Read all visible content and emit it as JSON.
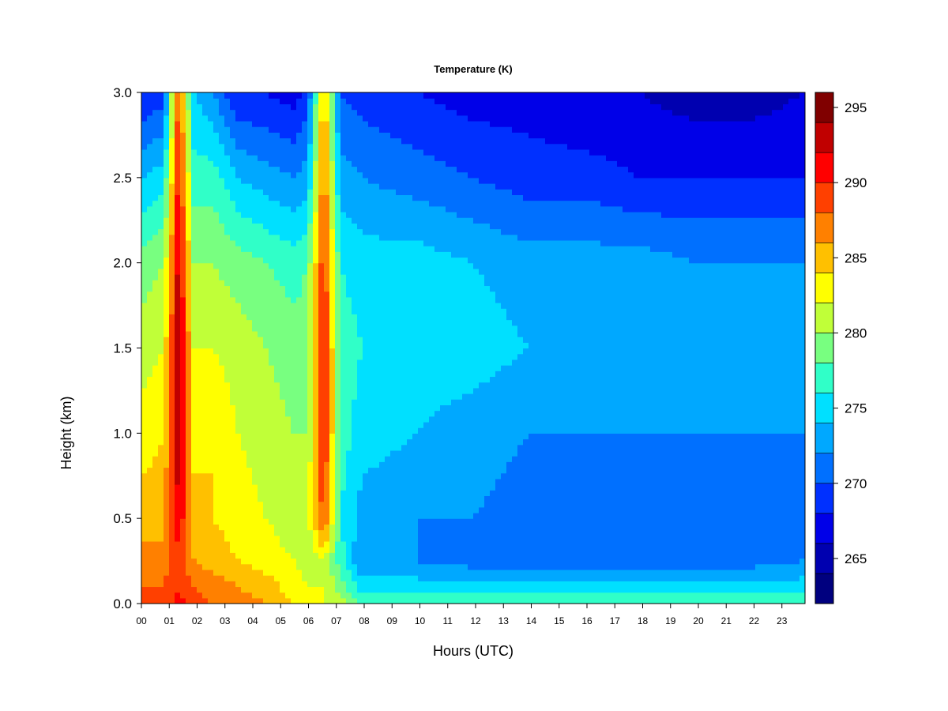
{
  "chart_data": {
    "type": "heatmap",
    "title": "Temperature (K)",
    "xlabel": "Hours (UTC)",
    "ylabel": "Height (km)",
    "xlim": [
      0,
      24
    ],
    "ylim": [
      0.0,
      3.0
    ],
    "x_ticks": [
      "00",
      "01",
      "02",
      "03",
      "04",
      "05",
      "06",
      "07",
      "08",
      "09",
      "10",
      "11",
      "12",
      "13",
      "14",
      "15",
      "16",
      "17",
      "18",
      "19",
      "20",
      "21",
      "22",
      "23"
    ],
    "y_ticks": [
      "0.0",
      "0.5",
      "1.0",
      "1.5",
      "2.0",
      "2.5",
      "3.0"
    ],
    "colorbar": {
      "min": 262,
      "max": 296,
      "step": 2,
      "tick_values": [
        265,
        270,
        275,
        280,
        285,
        290,
        295
      ],
      "tick_labels": [
        "265",
        "270",
        "275",
        "280",
        "285",
        "290",
        "295"
      ],
      "colors": [
        "#00007f",
        "#0000b0",
        "#0000e8",
        "#0030ff",
        "#0070ff",
        "#00a8ff",
        "#00e0ff",
        "#30ffc8",
        "#78ff80",
        "#c0ff38",
        "#ffff00",
        "#ffc000",
        "#ff8000",
        "#ff4000",
        "#ff0000",
        "#c00000",
        "#800000"
      ]
    },
    "temperature_grid": {
      "heights_km": [
        0.0,
        0.1,
        0.25,
        0.5,
        1.0,
        1.5,
        2.0,
        2.5,
        3.0
      ],
      "hours": [
        0,
        0.8,
        1.35,
        1.9,
        2.6,
        3.5,
        4.5,
        5.5,
        6.0,
        6.6,
        7.2,
        8,
        10,
        12,
        14,
        16,
        18,
        20,
        22,
        23.9
      ],
      "values": [
        [
          289,
          289,
          291,
          289,
          288,
          287,
          286,
          284,
          283,
          282,
          281,
          278,
          278,
          278,
          278,
          278,
          278,
          278,
          278,
          278
        ],
        [
          288,
          288,
          290,
          288,
          287,
          286,
          285,
          283,
          282,
          282,
          279,
          275,
          275,
          275,
          275,
          275,
          275,
          275,
          275,
          275
        ],
        [
          287,
          287,
          289,
          286,
          285,
          284,
          283,
          282,
          281,
          282,
          277,
          272,
          272,
          271,
          271,
          271,
          271,
          271,
          271,
          272
        ],
        [
          285,
          285,
          292,
          285,
          284,
          283,
          282,
          281,
          281,
          289,
          276,
          273,
          272,
          272,
          271,
          271,
          271,
          271,
          271,
          271
        ],
        [
          283,
          284,
          294,
          283,
          284,
          282,
          281,
          280,
          280,
          291,
          277,
          275,
          274,
          273,
          272,
          272,
          272,
          272,
          272,
          272
        ],
        [
          281,
          282,
          294,
          282,
          282,
          281,
          280,
          279,
          279,
          291,
          277,
          276,
          275,
          275,
          274,
          273,
          273,
          273,
          273,
          273
        ],
        [
          279,
          280,
          293,
          280,
          280,
          279,
          278,
          277,
          278,
          290,
          276,
          275,
          275,
          274,
          273,
          273,
          273,
          272,
          272,
          272
        ],
        [
          274,
          275,
          291,
          277,
          277,
          274,
          273,
          272,
          273,
          288,
          273,
          272,
          271,
          270,
          269,
          269,
          268,
          268,
          268,
          268
        ],
        [
          268,
          269,
          289,
          274,
          272,
          268,
          268,
          267,
          269,
          286,
          270,
          269,
          268,
          267,
          267,
          266,
          266,
          265,
          265,
          266
        ]
      ]
    }
  }
}
